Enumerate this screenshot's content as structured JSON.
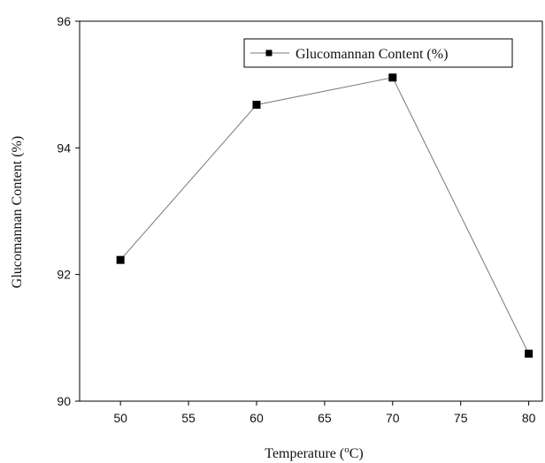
{
  "chart_data": {
    "type": "line",
    "title": "",
    "xlabel": "Temperature (",
    "xlabel_sup": "o",
    "xlabel_suffix": "C)",
    "ylabel": "Glucomannan Content (%)",
    "xlim": [
      47,
      81
    ],
    "ylim": [
      90,
      96
    ],
    "x_ticks": [
      50,
      55,
      60,
      65,
      70,
      75,
      80
    ],
    "y_ticks": [
      90,
      92,
      94,
      96
    ],
    "grid": false,
    "legend_position": "top-right",
    "series": [
      {
        "name": "Glucomannan Content (%)",
        "color": "#000000",
        "marker": "square",
        "x": [
          50,
          60,
          70,
          80
        ],
        "y": [
          92.23,
          94.68,
          95.11,
          90.75
        ]
      }
    ]
  }
}
